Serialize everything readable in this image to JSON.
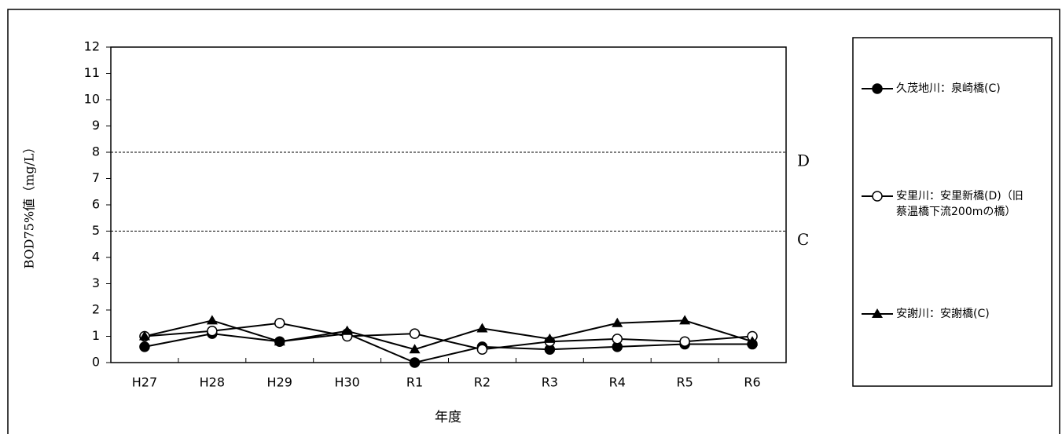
{
  "chart_data": {
    "type": "line",
    "x_label": "年度",
    "y_label": "BOD75%値（mg/L）",
    "categories": [
      "H27",
      "H28",
      "H29",
      "H30",
      "R1",
      "R2",
      "R3",
      "R4",
      "R5",
      "R6"
    ],
    "series": [
      {
        "name": "久茂地川：泉崎橋(C)",
        "color": "#000000",
        "marker": "filled-circle",
        "values": [
          0.6,
          1.1,
          0.8,
          1.1,
          0.0,
          0.6,
          0.5,
          0.6,
          0.7,
          0.7
        ]
      },
      {
        "name": "安里川：安里新橋(D)（旧蔡温橋下流200mの橋）",
        "color": "#000000",
        "marker": "open-circle",
        "values": [
          1.0,
          1.2,
          1.5,
          1.0,
          1.1,
          0.5,
          0.8,
          0.9,
          0.8,
          1.0
        ]
      },
      {
        "name": "安謝川：安謝橋(C)",
        "color": "#000000",
        "marker": "triangle",
        "values": [
          1.0,
          1.6,
          0.8,
          1.2,
          0.5,
          1.3,
          0.9,
          1.5,
          1.6,
          0.8
        ]
      }
    ],
    "reference_lines": [
      {
        "value": 8,
        "label": "D"
      },
      {
        "value": 5,
        "label": "C"
      }
    ],
    "ylim": [
      0,
      12
    ],
    "yticks": [
      0,
      1,
      2,
      3,
      4,
      5,
      6,
      7,
      8,
      9,
      10,
      11,
      12
    ],
    "legend_position": "right"
  }
}
